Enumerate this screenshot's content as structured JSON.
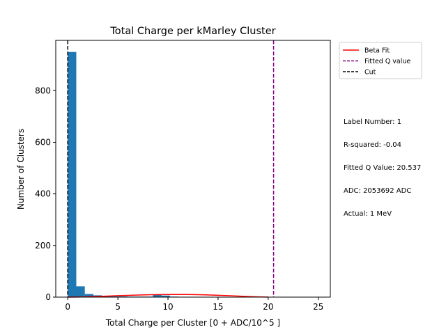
{
  "chart_data": {
    "type": "bar",
    "title": "Total Charge per kMarley Cluster",
    "xlabel": "Total Charge per Cluster [0 + ADC/10^5 ]",
    "ylabel": "Number of Clusters",
    "xlim": [
      -1.2,
      26.2
    ],
    "ylim": [
      0,
      995
    ],
    "xticks": [
      0,
      5,
      10,
      15,
      20,
      25
    ],
    "yticks": [
      0,
      200,
      400,
      600,
      800
    ],
    "bin_width": 0.85,
    "bins": [
      {
        "x": 0.0,
        "count": 950
      },
      {
        "x": 0.85,
        "count": 42
      },
      {
        "x": 1.7,
        "count": 12
      },
      {
        "x": 2.55,
        "count": 7
      },
      {
        "x": 3.4,
        "count": 4
      },
      {
        "x": 4.25,
        "count": 3
      },
      {
        "x": 5.1,
        "count": 3
      },
      {
        "x": 5.95,
        "count": 2
      },
      {
        "x": 6.8,
        "count": 2
      },
      {
        "x": 7.65,
        "count": 2
      },
      {
        "x": 8.5,
        "count": 8
      },
      {
        "x": 9.35,
        "count": 6
      },
      {
        "x": 10.2,
        "count": 2
      },
      {
        "x": 11.05,
        "count": 1
      },
      {
        "x": 11.9,
        "count": 1
      },
      {
        "x": 12.75,
        "count": 1
      }
    ],
    "fit_curve": {
      "x": [
        0,
        1,
        2,
        3,
        4,
        5,
        6,
        7,
        8,
        9,
        10,
        11,
        12,
        13,
        14,
        15,
        16,
        17,
        18,
        19,
        20
      ],
      "y": [
        0,
        0.5,
        1.5,
        2.8,
        4.2,
        5.6,
        6.9,
        8.0,
        9.0,
        9.7,
        10.1,
        10.2,
        10.0,
        9.4,
        8.4,
        7.1,
        5.6,
        4.0,
        2.4,
        1.0,
        0.2
      ]
    },
    "q_value_line": 20.537,
    "cut_line": 0.0,
    "legend_position": "outside-right-top",
    "legend": [
      {
        "label": "Beta Fit",
        "color": "#ff0000",
        "style": "solid"
      },
      {
        "label": "Fitted Q value",
        "color": "#800080",
        "style": "dashed"
      },
      {
        "label": "Cut",
        "color": "#000000",
        "style": "dashed"
      }
    ],
    "bar_color": "#1f77b4",
    "annotations": [
      "Label Number: 1",
      "R-squared: -0.04",
      "Fitted Q Value: 20.537",
      "ADC: 2053692 ADC",
      "Actual: 1 MeV"
    ]
  }
}
